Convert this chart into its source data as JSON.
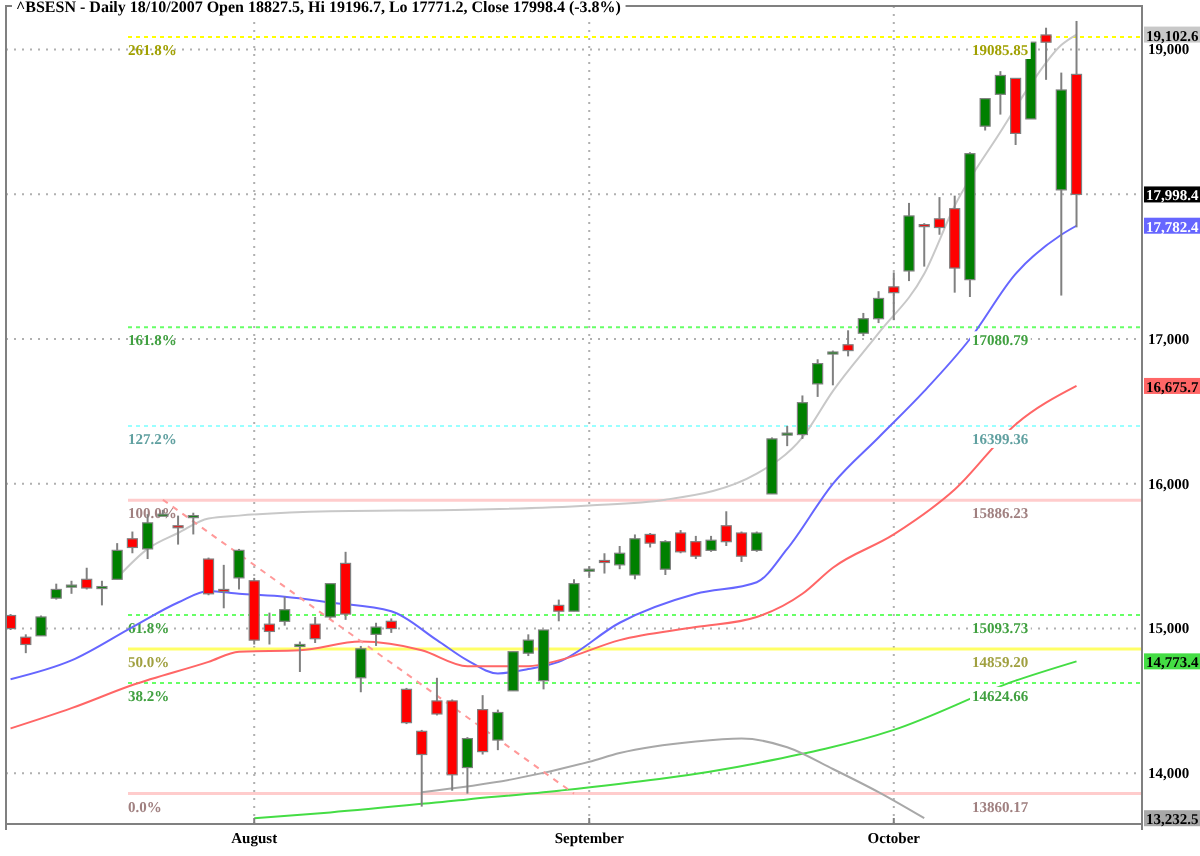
{
  "chart_data": {
    "type": "candlestick",
    "title": "^BSESN - Daily 18/10/2007 Open 18827.5, Hi 19196.7, Lo 17771.2, Close 17998.4 (-3.8%)",
    "categories": [
      null,
      null,
      null,
      null,
      null,
      null,
      null,
      null,
      null,
      null,
      null,
      null,
      null,
      null,
      null,
      null,
      "August",
      null,
      null,
      null,
      null,
      null,
      null,
      null,
      null,
      null,
      null,
      null,
      null,
      null,
      null,
      null,
      null,
      null,
      null,
      null,
      null,
      null,
      "September",
      null,
      null,
      null,
      null,
      null,
      null,
      null,
      null,
      null,
      null,
      null,
      null,
      null,
      null,
      null,
      null,
      null,
      null,
      null,
      "October",
      null,
      null,
      null,
      null,
      null,
      null,
      null,
      null,
      null,
      null,
      null,
      null
    ],
    "ohlc": [
      [
        15090,
        15100,
        14990,
        15000
      ],
      [
        14940,
        14960,
        14830,
        14890
      ],
      [
        14950,
        15090,
        14950,
        15080
      ],
      [
        15210,
        15310,
        15200,
        15270
      ],
      [
        15290,
        15330,
        15240,
        15300
      ],
      [
        15340,
        15420,
        15270,
        15280
      ],
      [
        15290,
        15330,
        15160,
        15290
      ],
      [
        15340,
        15590,
        15340,
        15540
      ],
      [
        15620,
        15670,
        15520,
        15560
      ],
      [
        15550,
        15790,
        15480,
        15730
      ],
      [
        15790,
        15820,
        15780,
        15790
      ],
      [
        15710,
        15780,
        15580,
        15700
      ],
      [
        15770,
        15800,
        15650,
        15780
      ],
      [
        15480,
        15490,
        15230,
        15240
      ],
      [
        15270,
        15440,
        15140,
        15260
      ],
      [
        15350,
        15550,
        15270,
        15540
      ],
      [
        15330,
        15350,
        14890,
        14920
      ],
      [
        15030,
        15110,
        14890,
        14980
      ],
      [
        15050,
        15220,
        15020,
        15130
      ],
      [
        14890,
        14910,
        14700,
        14890
      ],
      [
        15030,
        15080,
        14900,
        14930
      ],
      [
        15080,
        15310,
        15070,
        15310
      ],
      [
        15450,
        15530,
        15060,
        15100
      ],
      [
        14660,
        14880,
        14560,
        14860
      ],
      [
        14960,
        15040,
        14880,
        15010
      ],
      [
        15050,
        15070,
        14970,
        15000
      ],
      [
        14580,
        14590,
        14340,
        14350
      ],
      [
        14290,
        14300,
        13770,
        14130
      ],
      [
        14500,
        14660,
        14400,
        14410
      ],
      [
        14500,
        14510,
        13880,
        13990
      ],
      [
        14040,
        14250,
        13860,
        14240
      ],
      [
        14440,
        14540,
        14130,
        14150
      ],
      [
        14230,
        14440,
        14160,
        14420
      ],
      [
        14570,
        14840,
        14570,
        14840
      ],
      [
        14830,
        14960,
        14810,
        14920
      ],
      [
        14640,
        14990,
        14580,
        14990
      ],
      [
        15160,
        15200,
        15050,
        15120
      ],
      [
        15120,
        15340,
        15120,
        15310
      ],
      [
        15400,
        15430,
        15350,
        15410
      ],
      [
        15470,
        15520,
        15380,
        15460
      ],
      [
        15440,
        15570,
        15410,
        15520
      ],
      [
        15370,
        15650,
        15340,
        15620
      ],
      [
        15650,
        15660,
        15560,
        15590
      ],
      [
        15410,
        15610,
        15370,
        15600
      ],
      [
        15660,
        15680,
        15520,
        15530
      ],
      [
        15600,
        15640,
        15480,
        15500
      ],
      [
        15540,
        15640,
        15530,
        15610
      ],
      [
        15710,
        15810,
        15570,
        15600
      ],
      [
        15660,
        15670,
        15460,
        15500
      ],
      [
        15540,
        15670,
        15530,
        15660
      ],
      [
        15930,
        16320,
        15930,
        16310
      ],
      [
        16340,
        16400,
        16260,
        16350
      ],
      [
        16340,
        16610,
        16310,
        16560
      ],
      [
        16690,
        16860,
        16600,
        16830
      ],
      [
        16900,
        16920,
        16680,
        16910
      ],
      [
        16960,
        17060,
        16880,
        16920
      ],
      [
        17040,
        17180,
        17020,
        17140
      ],
      [
        17140,
        17330,
        17110,
        17280
      ],
      [
        17360,
        17460,
        17130,
        17320
      ],
      [
        17470,
        17940,
        17400,
        17850
      ],
      [
        17790,
        17800,
        17500,
        17780
      ],
      [
        17830,
        17980,
        17720,
        17770
      ],
      [
        17900,
        17990,
        17320,
        17490
      ],
      [
        17410,
        18290,
        17290,
        18280
      ],
      [
        18470,
        18660,
        18440,
        18660
      ],
      [
        18690,
        18850,
        18550,
        18820
      ],
      [
        18800,
        18800,
        18340,
        18420
      ],
      [
        18520,
        19050,
        18520,
        19050
      ],
      [
        19100,
        19150,
        18790,
        19050
      ],
      [
        18030,
        18840,
        17300,
        18720
      ],
      [
        18827.5,
        19196.7,
        17771.2,
        17998.4
      ]
    ],
    "series": [
      {
        "type": "line",
        "color": "#c8c8c8",
        "values": [
          null,
          null,
          null,
          null,
          null,
          null,
          null,
          15350,
          null,
          15550,
          null,
          15660,
          null,
          15760,
          null,
          15780,
          null,
          null,
          null,
          null,
          null,
          15810,
          null,
          null,
          null,
          null,
          null,
          null,
          null,
          null,
          15820,
          null,
          null,
          null,
          null,
          null,
          null,
          null,
          15850,
          null,
          null,
          null,
          null,
          15890,
          null,
          null,
          null,
          null,
          null,
          16070,
          null,
          null,
          16320,
          null,
          16640,
          null,
          null,
          17040,
          null,
          null,
          17450,
          null,
          17920,
          null,
          null,
          18430,
          null,
          18760,
          null,
          19030,
          19102.6
        ]
      },
      {
        "type": "line",
        "color": "#6666ff",
        "values": [
          14650,
          null,
          null,
          null,
          14780,
          null,
          null,
          null,
          15010,
          null,
          null,
          15180,
          null,
          15260,
          null,
          15240,
          null,
          null,
          15220,
          null,
          null,
          15180,
          null,
          null,
          null,
          15120,
          null,
          null,
          14920,
          null,
          14780,
          null,
          14690,
          null,
          14720,
          null,
          14770,
          null,
          null,
          null,
          15040,
          null,
          null,
          null,
          null,
          15240,
          null,
          null,
          null,
          15320,
          null,
          15550,
          null,
          null,
          16000,
          null,
          null,
          16320,
          null,
          null,
          16640,
          null,
          null,
          17000,
          null,
          null,
          17450,
          null,
          null,
          17720,
          17782.4
        ]
      },
      {
        "type": "line",
        "color": "#ff6666",
        "values": [
          14310,
          null,
          null,
          null,
          14450,
          null,
          null,
          null,
          14610,
          null,
          null,
          null,
          null,
          14770,
          null,
          14840,
          null,
          null,
          null,
          14850,
          null,
          null,
          null,
          14910,
          null,
          null,
          null,
          14850,
          null,
          null,
          14740,
          null,
          null,
          null,
          14740,
          null,
          14780,
          null,
          null,
          null,
          14920,
          null,
          null,
          null,
          null,
          15010,
          null,
          null,
          null,
          15080,
          null,
          null,
          15240,
          null,
          15420,
          null,
          null,
          null,
          15650,
          null,
          null,
          null,
          15960,
          null,
          null,
          null,
          16410,
          null,
          null,
          null,
          16675.7
        ]
      },
      {
        "type": "line",
        "color": "#44dd44",
        "values": [
          null,
          null,
          null,
          null,
          null,
          null,
          null,
          null,
          null,
          null,
          null,
          null,
          null,
          null,
          null,
          null,
          13690,
          null,
          null,
          null,
          null,
          13730,
          null,
          null,
          null,
          null,
          null,
          null,
          null,
          null,
          13820,
          null,
          null,
          null,
          null,
          null,
          13880,
          null,
          null,
          null,
          null,
          null,
          null,
          null,
          null,
          null,
          null,
          null,
          null,
          14070,
          null,
          null,
          null,
          null,
          null,
          null,
          null,
          null,
          14300,
          null,
          null,
          null,
          null,
          null,
          null,
          null,
          14640,
          null,
          null,
          null,
          14773.4
        ]
      },
      {
        "type": "line",
        "color": "#a8a8a8",
        "values": [
          null,
          null,
          null,
          null,
          null,
          null,
          null,
          null,
          null,
          null,
          null,
          null,
          null,
          null,
          null,
          null,
          null,
          null,
          null,
          null,
          null,
          null,
          null,
          null,
          null,
          null,
          null,
          13870,
          null,
          null,
          null,
          null,
          null,
          13960,
          null,
          null,
          null,
          null,
          14080,
          null,
          14140,
          null,
          null,
          null,
          null,
          14220,
          null,
          null,
          14240,
          null,
          null,
          14180,
          null,
          null,
          14030,
          null,
          null,
          13870,
          null,
          null,
          13690,
          null,
          null,
          null,
          null,
          null,
          null,
          null,
          null,
          null,
          null
        ]
      },
      {
        "type": "line",
        "color": "#ff9999",
        "line_style": "dashed",
        "values": [
          null,
          null,
          null,
          null,
          null,
          null,
          null,
          null,
          null,
          null,
          15890,
          null,
          null,
          null,
          null,
          null,
          null,
          null,
          null,
          null,
          null,
          null,
          null,
          null,
          null,
          null,
          null,
          null,
          null,
          null,
          null,
          null,
          null,
          null,
          null,
          null,
          null,
          13860,
          null,
          null,
          null,
          null,
          null,
          null,
          null,
          null,
          null,
          null,
          null,
          null,
          null,
          null,
          null,
          null,
          null,
          null,
          null,
          null,
          null,
          null,
          null,
          null,
          null,
          null,
          null,
          null,
          null,
          null,
          null,
          null,
          null
        ]
      }
    ],
    "ylim": [
      13650,
      19300
    ],
    "yticks": [
      {
        "value": 14000,
        "label": "14,000"
      },
      {
        "value": 15000,
        "label": "15,000"
      },
      {
        "value": 16000,
        "label": "16,000"
      },
      {
        "value": 17000,
        "label": "17,000"
      },
      {
        "value": 18000,
        "label": null
      },
      {
        "value": 19000,
        "label": "19,000"
      }
    ],
    "grid": true,
    "ref_lines": [
      {
        "axis": "y",
        "value": 19085.85,
        "label": "19085.85",
        "color": "#ffff00",
        "line_style": "dotted"
      },
      {
        "axis": "y",
        "value": 17080.79,
        "label": "17080.79",
        "color": "#66ff66",
        "line_style": "dotted"
      },
      {
        "axis": "y",
        "value": 16399.36,
        "label": "16399.36",
        "color": "#99ffff",
        "line_style": "dotted"
      },
      {
        "axis": "y",
        "value": 15886.23,
        "label": "15886.23",
        "color": "#ffcccc",
        "line_style": "solid"
      },
      {
        "axis": "y",
        "value": 15093.73,
        "label": "15093.73",
        "color": "#66ff66",
        "line_style": "dotted"
      },
      {
        "axis": "y",
        "value": 14859.2,
        "label": "14859.20",
        "color": "#ffff66",
        "line_style": "solid"
      },
      {
        "axis": "y",
        "value": 14624.66,
        "label": "14624.66",
        "color": "#66ff66",
        "line_style": "dotted"
      },
      {
        "axis": "y",
        "value": 13860.17,
        "label": "13860.17",
        "color": "#ffcccc",
        "line_style": "solid"
      }
    ],
    "annotations": [
      "17,998.4",
      "19,102.6",
      "17,782.4",
      "16,675.7",
      "14,773.4",
      "13,232.5",
      {
        "text": "261.8%",
        "y": 19085.85
      },
      {
        "text": "161.8%",
        "y": 17080.79
      },
      {
        "text": "127.2%",
        "y": 16399.36
      },
      {
        "text": "100.0%",
        "y": 15886.23
      },
      {
        "text": "61.8%",
        "y": 15093.73
      },
      {
        "text": "50.0%",
        "y": 14859.2
      },
      {
        "text": "38.2%",
        "y": 14624.66
      },
      {
        "text": "0.0%",
        "y": 13860.17
      }
    ]
  }
}
